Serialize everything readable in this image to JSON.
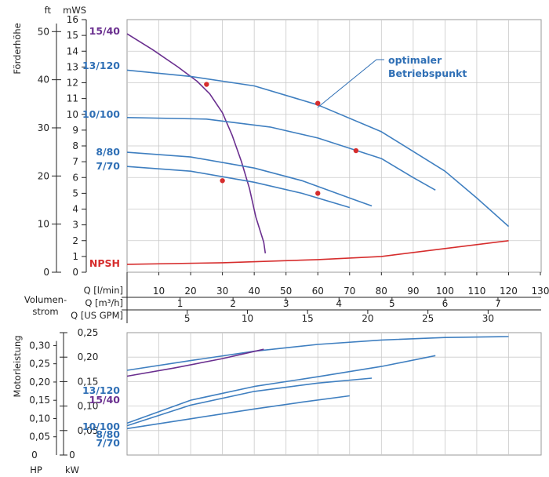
{
  "colors": {
    "blue": "#3f7fc0",
    "purple": "#6a2f8f",
    "red": "#d62d2d",
    "dot": "#d62d2d",
    "label_blue": "#2f6fb5"
  },
  "chart_data": [
    {
      "type": "line",
      "name": "head",
      "ylabel": "Förderhöhe",
      "left_unit": "ft",
      "right_unit": "mWS",
      "ylim_mws": [
        0,
        16
      ],
      "ft_ticks": [
        0,
        10,
        20,
        30,
        40,
        50
      ],
      "mws_ticks": [
        0,
        1,
        2,
        3,
        4,
        5,
        6,
        7,
        8,
        9,
        10,
        11,
        12,
        13,
        14,
        15,
        16
      ],
      "xlim_lmin": [
        0,
        130
      ],
      "annotation": {
        "line1": "optimaler",
        "line2": "Betriebspunkt"
      },
      "series": [
        {
          "name": "15/40",
          "color": "purple",
          "points": [
            [
              0,
              15.1
            ],
            [
              8,
              14.1
            ],
            [
              16,
              13.0
            ],
            [
              22,
              12.1
            ],
            [
              26,
              11.3
            ],
            [
              30,
              10.1
            ],
            [
              33,
              8.7
            ],
            [
              36,
              7.0
            ],
            [
              38.5,
              5.3
            ],
            [
              40.5,
              3.5
            ],
            [
              43,
              1.9
            ],
            [
              43.5,
              1.2
            ]
          ]
        },
        {
          "name": "13/120",
          "color": "blue",
          "points": [
            [
              0,
              12.8
            ],
            [
              20,
              12.4
            ],
            [
              40,
              11.8
            ],
            [
              60,
              10.6
            ],
            [
              80,
              8.9
            ],
            [
              100,
              6.4
            ],
            [
              110,
              4.7
            ],
            [
              120,
              2.9
            ]
          ],
          "bep": [
            [
              25,
              11.9
            ],
            [
              60,
              10.7
            ]
          ]
        },
        {
          "name": "10/100",
          "color": "blue",
          "points": [
            [
              0,
              9.8
            ],
            [
              25,
              9.7
            ],
            [
              45,
              9.2
            ],
            [
              60,
              8.5
            ],
            [
              80,
              7.2
            ],
            [
              90,
              6.0
            ],
            [
              97,
              5.2
            ]
          ],
          "bep": [
            [
              72,
              7.7
            ]
          ]
        },
        {
          "name": "8/80",
          "color": "blue",
          "points": [
            [
              0,
              7.6
            ],
            [
              20,
              7.3
            ],
            [
              40,
              6.6
            ],
            [
              55,
              5.8
            ],
            [
              70,
              4.7
            ],
            [
              77,
              4.2
            ]
          ],
          "bep": [
            [
              60,
              5.0
            ]
          ]
        },
        {
          "name": "7/70",
          "color": "blue",
          "points": [
            [
              0,
              6.7
            ],
            [
              20,
              6.4
            ],
            [
              40,
              5.7
            ],
            [
              55,
              5.0
            ],
            [
              70,
              4.1
            ]
          ],
          "bep": [
            [
              30,
              5.8
            ]
          ]
        },
        {
          "name": "NPSH",
          "color": "red",
          "points": [
            [
              0,
              0.5
            ],
            [
              30,
              0.6
            ],
            [
              60,
              0.8
            ],
            [
              80,
              1.0
            ],
            [
              100,
              1.5
            ],
            [
              120,
              2.0
            ]
          ]
        }
      ],
      "x_axes": [
        {
          "label": "Q [l/min]",
          "ticks": [
            10,
            20,
            30,
            40,
            50,
            60,
            70,
            80,
            90,
            100,
            110,
            120,
            130
          ]
        },
        {
          "label": "Q [m³/h]",
          "ticks": [
            1,
            2,
            3,
            4,
            5,
            6,
            7
          ]
        },
        {
          "label": "Q [US GPM]",
          "ticks": [
            5,
            10,
            15,
            20,
            25,
            30
          ]
        }
      ],
      "xlabel": "Volumen-\nstrom"
    },
    {
      "type": "line",
      "name": "power",
      "ylabel": "Motorleistung",
      "left_unit": "HP",
      "right_unit": "kW",
      "ylim_kw": [
        0,
        0.25
      ],
      "hp_ticks": [
        "0,05",
        "0,10",
        "0,15",
        "0,20",
        "0,25",
        "0,30"
      ],
      "hp_zero": "0",
      "kw_ticks": [
        "0,05",
        "0,10",
        "0,15",
        "0,20",
        "0,25"
      ],
      "kw_zero": "0",
      "series": [
        {
          "name": "13/120",
          "color": "blue",
          "points": [
            [
              0,
              0.173
            ],
            [
              20,
              0.193
            ],
            [
              40,
              0.212
            ],
            [
              60,
              0.226
            ],
            [
              80,
              0.235
            ],
            [
              100,
              0.24
            ],
            [
              120,
              0.242
            ]
          ]
        },
        {
          "name": "15/40",
          "color": "purple",
          "points": [
            [
              0,
              0.161
            ],
            [
              15,
              0.178
            ],
            [
              30,
              0.197
            ],
            [
              43,
              0.216
            ]
          ]
        },
        {
          "name": "10/100",
          "color": "blue",
          "points": [
            [
              0,
              0.065
            ],
            [
              20,
              0.112
            ],
            [
              40,
              0.14
            ],
            [
              60,
              0.16
            ],
            [
              80,
              0.181
            ],
            [
              97,
              0.203
            ]
          ]
        },
        {
          "name": "8/80",
          "color": "blue",
          "points": [
            [
              0,
              0.06
            ],
            [
              20,
              0.102
            ],
            [
              40,
              0.13
            ],
            [
              60,
              0.147
            ],
            [
              77,
              0.157
            ]
          ]
        },
        {
          "name": "7/70",
          "color": "blue",
          "points": [
            [
              0,
              0.054
            ],
            [
              20,
              0.074
            ],
            [
              40,
              0.094
            ],
            [
              55,
              0.108
            ],
            [
              70,
              0.121
            ]
          ]
        }
      ],
      "labels": [
        "13/120",
        "15/40",
        "10/100",
        "8/80",
        "7/70"
      ]
    }
  ]
}
